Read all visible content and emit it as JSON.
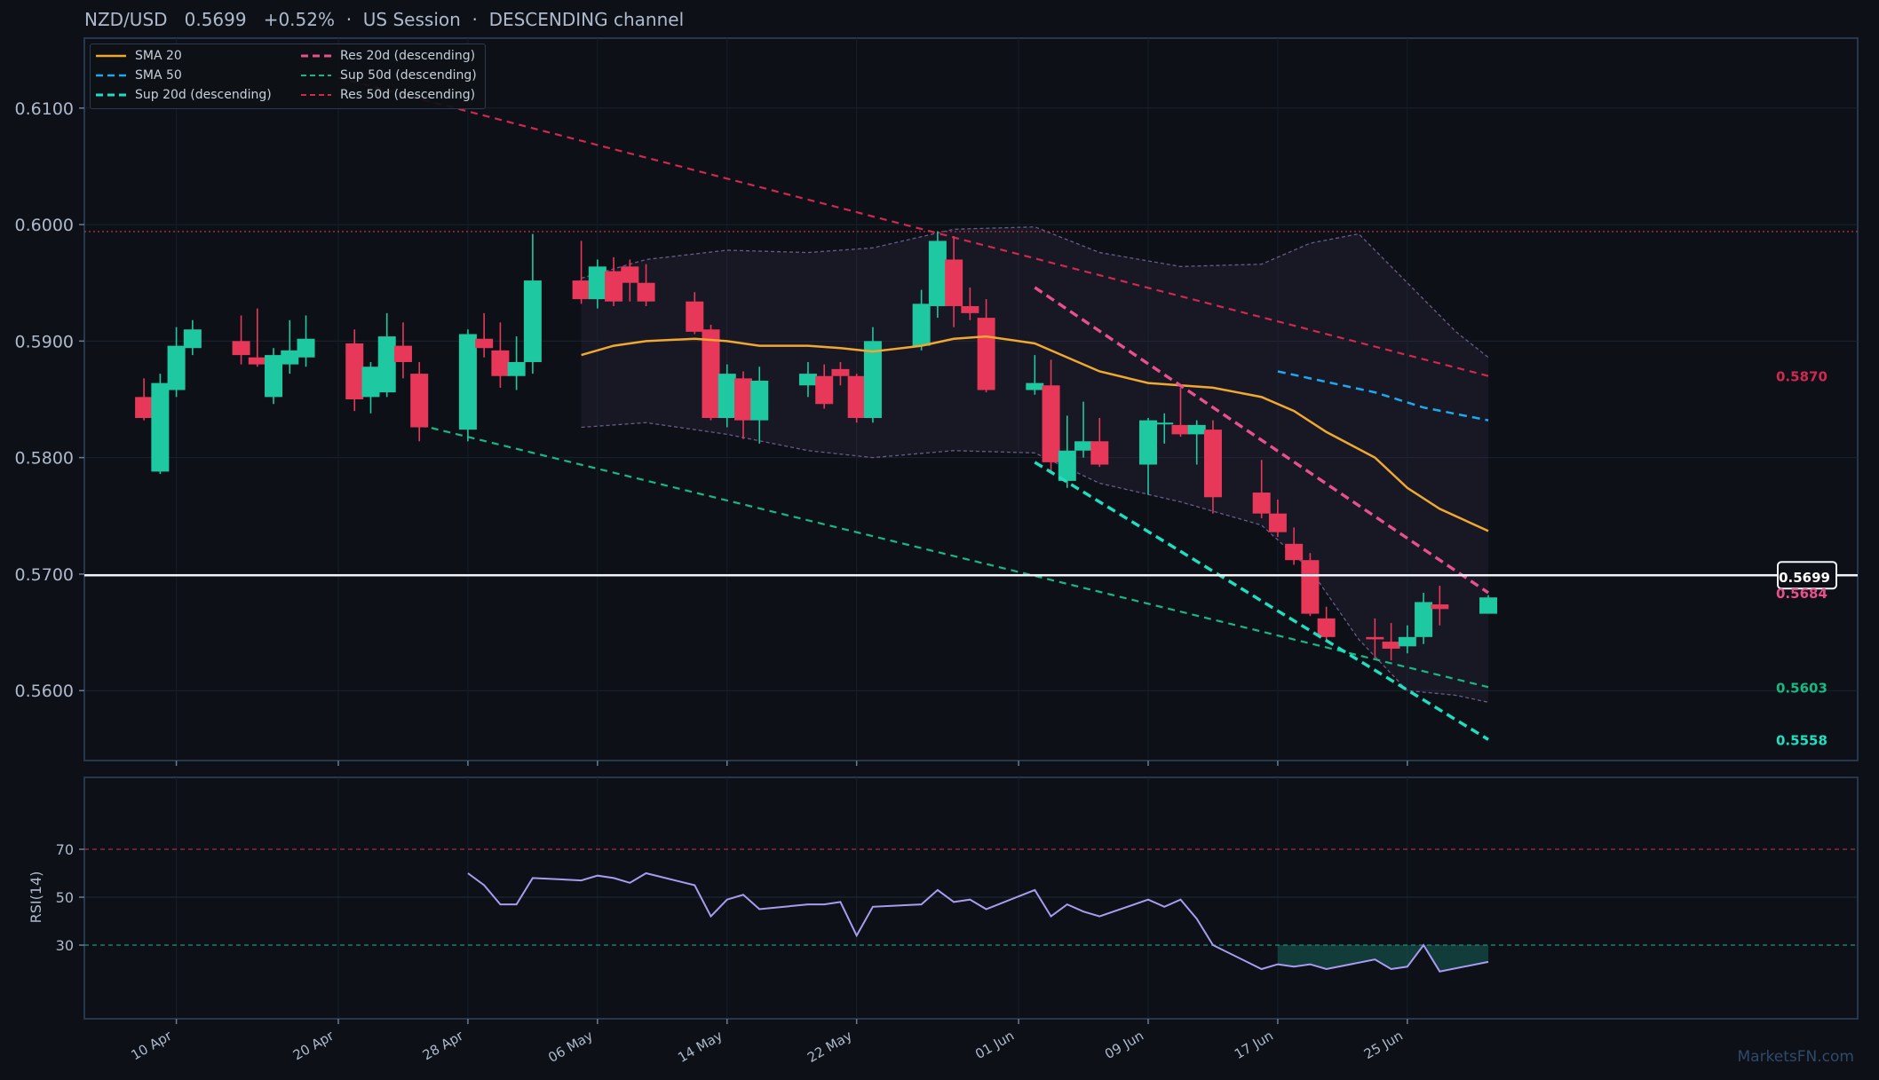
{
  "header": {
    "pair": "NZD/USD",
    "price": "0.5699",
    "change": "+0.52%",
    "session": "US Session",
    "channel": "DESCENDING channel",
    "sep": "·"
  },
  "watermark": "MarketsFN.com",
  "colors": {
    "background": "#0d1117",
    "up": "#1ec8a0",
    "down": "#e8385a",
    "sma20": "#f0a830",
    "sma50": "#1ea8f0",
    "sup20": "#1ee0c0",
    "res20": "#e8508c",
    "sup50": "#18b884",
    "res50": "#d02850",
    "rsi": "#a89cf0",
    "band": "#6a5a8a"
  },
  "chart_data": {
    "type": "candlestick",
    "ylim": [
      0.554,
      0.616
    ],
    "yticks": [
      "0.5600",
      "0.5700",
      "0.5800",
      "0.5900",
      "0.6000",
      "0.6100"
    ],
    "x_start": "2025-04-08",
    "xtick_dates": [
      "2025-04-10",
      "2025-04-20",
      "2025-04-28",
      "2025-05-06",
      "2025-05-14",
      "2025-05-22",
      "2025-06-01",
      "2025-06-09",
      "2025-06-17",
      "2025-06-25"
    ],
    "xtick_labels": [
      "10 Apr",
      "20 Apr",
      "28 Apr",
      "06 May",
      "14 May",
      "22 May",
      "01 Jun",
      "09 Jun",
      "17 Jun",
      "25 Jun"
    ],
    "candles": [
      {
        "d": "2025-04-08",
        "o": 0.5852,
        "h": 0.5868,
        "l": 0.5832,
        "c": 0.5834
      },
      {
        "d": "2025-04-09",
        "o": 0.5788,
        "h": 0.5872,
        "l": 0.5786,
        "c": 0.5864
      },
      {
        "d": "2025-04-10",
        "o": 0.5858,
        "h": 0.5912,
        "l": 0.5852,
        "c": 0.5896
      },
      {
        "d": "2025-04-11",
        "o": 0.5894,
        "h": 0.5918,
        "l": 0.5888,
        "c": 0.591
      },
      {
        "d": "2025-04-14",
        "o": 0.59,
        "h": 0.5922,
        "l": 0.588,
        "c": 0.5888
      },
      {
        "d": "2025-04-15",
        "o": 0.5886,
        "h": 0.5928,
        "l": 0.5878,
        "c": 0.588
      },
      {
        "d": "2025-04-16",
        "o": 0.5852,
        "h": 0.5894,
        "l": 0.5846,
        "c": 0.5888
      },
      {
        "d": "2025-04-17",
        "o": 0.588,
        "h": 0.5918,
        "l": 0.5872,
        "c": 0.5892
      },
      {
        "d": "2025-04-18",
        "o": 0.5886,
        "h": 0.5922,
        "l": 0.5878,
        "c": 0.5902
      },
      {
        "d": "2025-04-21",
        "o": 0.5898,
        "h": 0.591,
        "l": 0.584,
        "c": 0.585
      },
      {
        "d": "2025-04-22",
        "o": 0.5852,
        "h": 0.5882,
        "l": 0.5838,
        "c": 0.5878
      },
      {
        "d": "2025-04-23",
        "o": 0.5856,
        "h": 0.5924,
        "l": 0.5852,
        "c": 0.5904
      },
      {
        "d": "2025-04-24",
        "o": 0.5896,
        "h": 0.5916,
        "l": 0.5868,
        "c": 0.5882
      },
      {
        "d": "2025-04-25",
        "o": 0.5872,
        "h": 0.5882,
        "l": 0.5814,
        "c": 0.5826
      },
      {
        "d": "2025-04-28",
        "o": 0.5824,
        "h": 0.591,
        "l": 0.5814,
        "c": 0.5906
      },
      {
        "d": "2025-04-29",
        "o": 0.5902,
        "h": 0.5924,
        "l": 0.5886,
        "c": 0.5894
      },
      {
        "d": "2025-04-30",
        "o": 0.5892,
        "h": 0.5916,
        "l": 0.586,
        "c": 0.587
      },
      {
        "d": "2025-05-01",
        "o": 0.587,
        "h": 0.5904,
        "l": 0.5858,
        "c": 0.5882
      },
      {
        "d": "2025-05-02",
        "o": 0.5882,
        "h": 0.5992,
        "l": 0.5872,
        "c": 0.5952
      },
      {
        "d": "2025-05-05",
        "o": 0.5952,
        "h": 0.5986,
        "l": 0.5932,
        "c": 0.5936
      },
      {
        "d": "2025-05-06",
        "o": 0.5936,
        "h": 0.597,
        "l": 0.5928,
        "c": 0.5964
      },
      {
        "d": "2025-05-07",
        "o": 0.596,
        "h": 0.5972,
        "l": 0.593,
        "c": 0.5934
      },
      {
        "d": "2025-05-08",
        "o": 0.5964,
        "h": 0.597,
        "l": 0.5934,
        "c": 0.595
      },
      {
        "d": "2025-05-09",
        "o": 0.595,
        "h": 0.5966,
        "l": 0.593,
        "c": 0.5934
      },
      {
        "d": "2025-05-12",
        "o": 0.5934,
        "h": 0.5942,
        "l": 0.5906,
        "c": 0.5908
      },
      {
        "d": "2025-05-13",
        "o": 0.591,
        "h": 0.5914,
        "l": 0.5832,
        "c": 0.5834
      },
      {
        "d": "2025-05-14",
        "o": 0.5834,
        "h": 0.588,
        "l": 0.5826,
        "c": 0.5872
      },
      {
        "d": "2025-05-15",
        "o": 0.5868,
        "h": 0.5874,
        "l": 0.5816,
        "c": 0.5832
      },
      {
        "d": "2025-05-16",
        "o": 0.5832,
        "h": 0.5878,
        "l": 0.5812,
        "c": 0.5866
      },
      {
        "d": "2025-05-19",
        "o": 0.5862,
        "h": 0.5882,
        "l": 0.5852,
        "c": 0.5872
      },
      {
        "d": "2025-05-20",
        "o": 0.587,
        "h": 0.588,
        "l": 0.5842,
        "c": 0.5846
      },
      {
        "d": "2025-05-21",
        "o": 0.5876,
        "h": 0.5882,
        "l": 0.5862,
        "c": 0.587
      },
      {
        "d": "2025-05-22",
        "o": 0.587,
        "h": 0.5872,
        "l": 0.583,
        "c": 0.5834
      },
      {
        "d": "2025-05-23",
        "o": 0.5834,
        "h": 0.5912,
        "l": 0.583,
        "c": 0.59
      },
      {
        "d": "2025-05-26",
        "o": 0.5896,
        "h": 0.5944,
        "l": 0.5892,
        "c": 0.5932
      },
      {
        "d": "2025-05-27",
        "o": 0.593,
        "h": 0.5994,
        "l": 0.592,
        "c": 0.5986
      },
      {
        "d": "2025-05-28",
        "o": 0.597,
        "h": 0.599,
        "l": 0.5912,
        "c": 0.593
      },
      {
        "d": "2025-05-29",
        "o": 0.593,
        "h": 0.5946,
        "l": 0.5918,
        "c": 0.5924
      },
      {
        "d": "2025-05-30",
        "o": 0.592,
        "h": 0.5936,
        "l": 0.5856,
        "c": 0.5858
      },
      {
        "d": "2025-06-02",
        "o": 0.5858,
        "h": 0.5888,
        "l": 0.5854,
        "c": 0.5864
      },
      {
        "d": "2025-06-03",
        "o": 0.5862,
        "h": 0.5884,
        "l": 0.5788,
        "c": 0.5796
      },
      {
        "d": "2025-06-04",
        "o": 0.578,
        "h": 0.5836,
        "l": 0.5774,
        "c": 0.5806
      },
      {
        "d": "2025-06-05",
        "o": 0.5806,
        "h": 0.5848,
        "l": 0.58,
        "c": 0.5814
      },
      {
        "d": "2025-06-06",
        "o": 0.5814,
        "h": 0.5834,
        "l": 0.5792,
        "c": 0.5794
      },
      {
        "d": "2025-06-09",
        "o": 0.5794,
        "h": 0.5834,
        "l": 0.5768,
        "c": 0.5832
      },
      {
        "d": "2025-06-10",
        "o": 0.583,
        "h": 0.5838,
        "l": 0.5812,
        "c": 0.583
      },
      {
        "d": "2025-06-11",
        "o": 0.5828,
        "h": 0.586,
        "l": 0.5818,
        "c": 0.582
      },
      {
        "d": "2025-06-12",
        "o": 0.582,
        "h": 0.5832,
        "l": 0.5794,
        "c": 0.5828
      },
      {
        "d": "2025-06-13",
        "o": 0.5824,
        "h": 0.5832,
        "l": 0.5752,
        "c": 0.5766
      },
      {
        "d": "2025-06-16",
        "o": 0.577,
        "h": 0.5798,
        "l": 0.5748,
        "c": 0.5752
      },
      {
        "d": "2025-06-17",
        "o": 0.5752,
        "h": 0.5764,
        "l": 0.5732,
        "c": 0.5736
      },
      {
        "d": "2025-06-18",
        "o": 0.5726,
        "h": 0.574,
        "l": 0.5708,
        "c": 0.5712
      },
      {
        "d": "2025-06-19",
        "o": 0.5712,
        "h": 0.5718,
        "l": 0.5664,
        "c": 0.5666
      },
      {
        "d": "2025-06-20",
        "o": 0.5662,
        "h": 0.5672,
        "l": 0.5642,
        "c": 0.5646
      },
      {
        "d": "2025-06-23",
        "o": 0.5646,
        "h": 0.5662,
        "l": 0.5628,
        "c": 0.5644
      },
      {
        "d": "2025-06-24",
        "o": 0.5642,
        "h": 0.5658,
        "l": 0.5626,
        "c": 0.5636
      },
      {
        "d": "2025-06-25",
        "o": 0.5638,
        "h": 0.5656,
        "l": 0.5632,
        "c": 0.5646
      },
      {
        "d": "2025-06-26",
        "o": 0.5646,
        "h": 0.5684,
        "l": 0.564,
        "c": 0.5676
      },
      {
        "d": "2025-06-27",
        "o": 0.5674,
        "h": 0.569,
        "l": 0.5656,
        "c": 0.567
      },
      {
        "d": "2025-06-30",
        "o": 0.5666,
        "h": 0.5682,
        "l": 0.5666,
        "c": 0.568
      }
    ],
    "sma20": [
      {
        "d": "2025-05-05",
        "v": 0.5888
      },
      {
        "d": "2025-05-07",
        "v": 0.5896
      },
      {
        "d": "2025-05-09",
        "v": 0.59
      },
      {
        "d": "2025-05-12",
        "v": 0.5902
      },
      {
        "d": "2025-05-14",
        "v": 0.59
      },
      {
        "d": "2025-05-16",
        "v": 0.5896
      },
      {
        "d": "2025-05-19",
        "v": 0.5896
      },
      {
        "d": "2025-05-21",
        "v": 0.5894
      },
      {
        "d": "2025-05-23",
        "v": 0.5891
      },
      {
        "d": "2025-05-26",
        "v": 0.5896
      },
      {
        "d": "2025-05-28",
        "v": 0.5902
      },
      {
        "d": "2025-05-30",
        "v": 0.5904
      },
      {
        "d": "2025-06-02",
        "v": 0.5898
      },
      {
        "d": "2025-06-04",
        "v": 0.5886
      },
      {
        "d": "2025-06-06",
        "v": 0.5874
      },
      {
        "d": "2025-06-09",
        "v": 0.5864
      },
      {
        "d": "2025-06-11",
        "v": 0.5862
      },
      {
        "d": "2025-06-13",
        "v": 0.586
      },
      {
        "d": "2025-06-16",
        "v": 0.5852
      },
      {
        "d": "2025-06-18",
        "v": 0.584
      },
      {
        "d": "2025-06-20",
        "v": 0.5822
      },
      {
        "d": "2025-06-23",
        "v": 0.58
      },
      {
        "d": "2025-06-25",
        "v": 0.5774
      },
      {
        "d": "2025-06-27",
        "v": 0.5756
      },
      {
        "d": "2025-06-30",
        "v": 0.5737
      }
    ],
    "sma50": [
      {
        "d": "2025-06-17",
        "v": 0.5874
      },
      {
        "d": "2025-06-19",
        "v": 0.5868
      },
      {
        "d": "2025-06-23",
        "v": 0.5856
      },
      {
        "d": "2025-06-26",
        "v": 0.5843
      },
      {
        "d": "2025-06-30",
        "v": 0.5832
      }
    ],
    "bollinger_upper": [
      {
        "d": "2025-05-05",
        "v": 0.5954
      },
      {
        "d": "2025-05-09",
        "v": 0.597
      },
      {
        "d": "2025-05-14",
        "v": 0.5978
      },
      {
        "d": "2025-05-19",
        "v": 0.5976
      },
      {
        "d": "2025-05-23",
        "v": 0.598
      },
      {
        "d": "2025-05-28",
        "v": 0.5996
      },
      {
        "d": "2025-06-02",
        "v": 0.5998
      },
      {
        "d": "2025-06-06",
        "v": 0.5976
      },
      {
        "d": "2025-06-11",
        "v": 0.5964
      },
      {
        "d": "2025-06-16",
        "v": 0.5966
      },
      {
        "d": "2025-06-19",
        "v": 0.5984
      },
      {
        "d": "2025-06-22",
        "v": 0.5992
      },
      {
        "d": "2025-06-25",
        "v": 0.595
      },
      {
        "d": "2025-06-28",
        "v": 0.5908
      },
      {
        "d": "2025-06-30",
        "v": 0.5886
      }
    ],
    "bollinger_lower": [
      {
        "d": "2025-05-05",
        "v": 0.5826
      },
      {
        "d": "2025-05-09",
        "v": 0.583
      },
      {
        "d": "2025-05-14",
        "v": 0.582
      },
      {
        "d": "2025-05-19",
        "v": 0.5806
      },
      {
        "d": "2025-05-23",
        "v": 0.58
      },
      {
        "d": "2025-05-28",
        "v": 0.5806
      },
      {
        "d": "2025-06-02",
        "v": 0.5804
      },
      {
        "d": "2025-06-06",
        "v": 0.5778
      },
      {
        "d": "2025-06-11",
        "v": 0.5762
      },
      {
        "d": "2025-06-16",
        "v": 0.5742
      },
      {
        "d": "2025-06-19",
        "v": 0.5704
      },
      {
        "d": "2025-06-22",
        "v": 0.5644
      },
      {
        "d": "2025-06-25",
        "v": 0.56
      },
      {
        "d": "2025-06-28",
        "v": 0.5596
      },
      {
        "d": "2025-06-30",
        "v": 0.559
      }
    ],
    "trendlines": {
      "res50": {
        "from": {
          "d": "2025-04-20",
          "v": 0.6126
        },
        "to": {
          "d": "2025-06-30",
          "v": 0.587
        },
        "label": "0.5870"
      },
      "sup50": {
        "from": {
          "d": "2025-04-25",
          "v": 0.5828
        },
        "to": {
          "d": "2025-06-30",
          "v": 0.5603
        },
        "label": "0.5603"
      },
      "res20": {
        "from": {
          "d": "2025-06-02",
          "v": 0.5946
        },
        "to": {
          "d": "2025-06-30",
          "v": 0.5684
        },
        "label": "0.5684"
      },
      "sup20": {
        "from": {
          "d": "2025-06-02",
          "v": 0.5796
        },
        "to": {
          "d": "2025-06-30",
          "v": 0.5558
        },
        "label": "0.5558"
      }
    },
    "current_price": 0.5699,
    "current_price_label": "0.5699",
    "high_reference": 0.5994,
    "legend": [
      {
        "label": "SMA 20",
        "key": "sma20",
        "style": "solid"
      },
      {
        "label": "SMA 50",
        "key": "sma50",
        "style": "dashed"
      },
      {
        "label": "Sup 20d (descending)",
        "key": "sup20",
        "style": "dashed"
      },
      {
        "label": "Res 20d (descending)",
        "key": "res20",
        "style": "dashed"
      },
      {
        "label": "Sup 50d (descending)",
        "key": "sup50",
        "style": "dashed"
      },
      {
        "label": "Res 50d (descending)",
        "key": "res50",
        "style": "dashed"
      }
    ],
    "rsi": {
      "ylabel": "RSI(14)",
      "ylim": [
        0,
        100
      ],
      "yticks": [
        "30",
        "50",
        "70"
      ],
      "overbought": 70,
      "oversold": 30,
      "values": [
        {
          "d": "2025-04-28",
          "v": 60
        },
        {
          "d": "2025-04-29",
          "v": 55
        },
        {
          "d": "2025-04-30",
          "v": 47
        },
        {
          "d": "2025-05-01",
          "v": 47
        },
        {
          "d": "2025-05-02",
          "v": 58
        },
        {
          "d": "2025-05-05",
          "v": 57
        },
        {
          "d": "2025-05-06",
          "v": 59
        },
        {
          "d": "2025-05-07",
          "v": 58
        },
        {
          "d": "2025-05-08",
          "v": 56
        },
        {
          "d": "2025-05-09",
          "v": 60
        },
        {
          "d": "2025-05-12",
          "v": 55
        },
        {
          "d": "2025-05-13",
          "v": 42
        },
        {
          "d": "2025-05-14",
          "v": 49
        },
        {
          "d": "2025-05-15",
          "v": 51
        },
        {
          "d": "2025-05-16",
          "v": 45
        },
        {
          "d": "2025-05-19",
          "v": 47
        },
        {
          "d": "2025-05-20",
          "v": 47
        },
        {
          "d": "2025-05-21",
          "v": 48
        },
        {
          "d": "2025-05-22",
          "v": 34
        },
        {
          "d": "2025-05-23",
          "v": 46
        },
        {
          "d": "2025-05-26",
          "v": 47
        },
        {
          "d": "2025-05-27",
          "v": 53
        },
        {
          "d": "2025-05-28",
          "v": 48
        },
        {
          "d": "2025-05-29",
          "v": 49
        },
        {
          "d": "2025-05-30",
          "v": 45
        },
        {
          "d": "2025-06-02",
          "v": 53
        },
        {
          "d": "2025-06-03",
          "v": 42
        },
        {
          "d": "2025-06-04",
          "v": 47
        },
        {
          "d": "2025-06-05",
          "v": 44
        },
        {
          "d": "2025-06-06",
          "v": 42
        },
        {
          "d": "2025-06-09",
          "v": 49
        },
        {
          "d": "2025-06-10",
          "v": 46
        },
        {
          "d": "2025-06-11",
          "v": 49
        },
        {
          "d": "2025-06-12",
          "v": 41
        },
        {
          "d": "2025-06-13",
          "v": 30
        },
        {
          "d": "2025-06-16",
          "v": 20
        },
        {
          "d": "2025-06-17",
          "v": 22
        },
        {
          "d": "2025-06-18",
          "v": 21
        },
        {
          "d": "2025-06-19",
          "v": 22
        },
        {
          "d": "2025-06-20",
          "v": 20
        },
        {
          "d": "2025-06-23",
          "v": 24
        },
        {
          "d": "2025-06-24",
          "v": 20
        },
        {
          "d": "2025-06-25",
          "v": 21
        },
        {
          "d": "2025-06-26",
          "v": 30
        },
        {
          "d": "2025-06-27",
          "v": 19
        },
        {
          "d": "2025-06-30",
          "v": 23
        }
      ],
      "oversold_zone": {
        "from": "2025-06-17",
        "to": "2025-06-30"
      }
    }
  }
}
